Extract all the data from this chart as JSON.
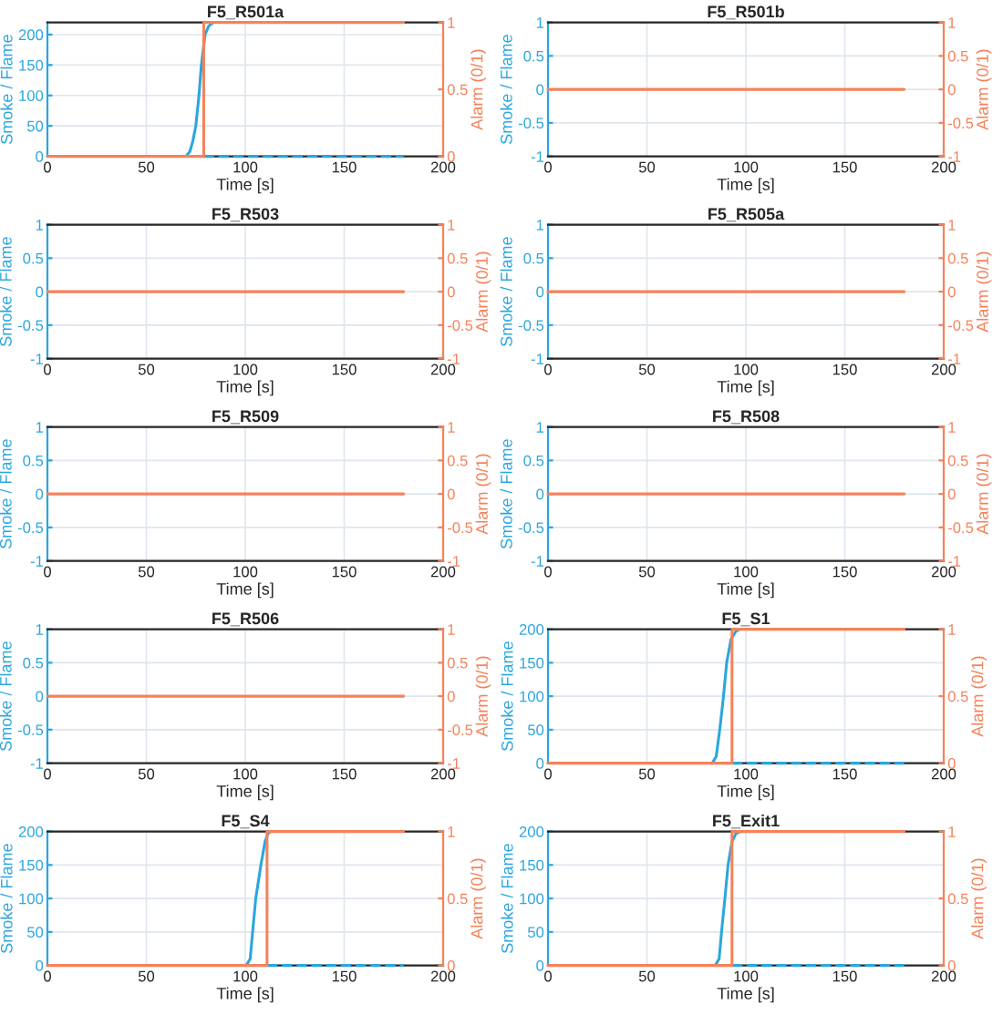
{
  "chart_data": [
    {
      "type": "line",
      "title": "F5_R501a",
      "xlabel": "Time [s]",
      "ylabel": "Smoke / Flame",
      "y2label": "Alarm (0/1)",
      "xlim": [
        0,
        200
      ],
      "xticks": [
        0,
        50,
        100,
        150,
        200
      ],
      "ylim": [
        0,
        220
      ],
      "yticks": [
        0,
        50,
        100,
        150,
        200
      ],
      "y2lim": [
        0,
        1
      ],
      "y2ticks": [
        0,
        0.5,
        1
      ],
      "grid": true,
      "series": [
        {
          "color": "#2ba6de",
          "line_style": "solid",
          "x": [
            70,
            72,
            73.5,
            75,
            76.6,
            77.8,
            79.7,
            81.5,
            84
          ],
          "values": [
            0,
            8,
            25,
            50,
            100,
            150,
            200,
            214,
            220
          ]
        },
        {
          "color": "#2ba6de",
          "line_style": "dashed",
          "x": [
            79,
            180
          ],
          "values": [
            0,
            0
          ]
        },
        {
          "axis": "y2",
          "color": "#f5825a",
          "line_style": "solid",
          "x": [
            0,
            79,
            79,
            180
          ],
          "values": [
            0,
            0,
            1,
            1
          ]
        }
      ]
    },
    {
      "type": "line",
      "title": "F5_R501b",
      "xlabel": "Time [s]",
      "ylabel": "Smoke / Flame",
      "y2label": "Alarm (0/1)",
      "xlim": [
        0,
        200
      ],
      "xticks": [
        0,
        50,
        100,
        150,
        200
      ],
      "ylim": [
        -1,
        1
      ],
      "yticks": [
        -1,
        -0.5,
        0,
        0.5,
        1
      ],
      "y2lim": [
        -1,
        1
      ],
      "y2ticks": [
        -1,
        -0.5,
        0,
        0.5,
        1
      ],
      "grid": true,
      "series": [
        {
          "axis": "y2",
          "color": "#f5825a",
          "line_style": "solid",
          "x": [
            0,
            180
          ],
          "values": [
            0,
            0
          ]
        }
      ]
    },
    {
      "type": "line",
      "title": "F5_R503",
      "xlabel": "Time [s]",
      "ylabel": "Smoke / Flame",
      "y2label": "Alarm (0/1)",
      "xlim": [
        0,
        200
      ],
      "xticks": [
        0,
        50,
        100,
        150,
        200
      ],
      "ylim": [
        -1,
        1
      ],
      "yticks": [
        -1,
        -0.5,
        0,
        0.5,
        1
      ],
      "y2lim": [
        -1,
        1
      ],
      "y2ticks": [
        -1,
        -0.5,
        0,
        0.5,
        1
      ],
      "grid": true,
      "series": [
        {
          "axis": "y2",
          "color": "#f5825a",
          "line_style": "solid",
          "x": [
            0,
            180
          ],
          "values": [
            0,
            0
          ]
        }
      ]
    },
    {
      "type": "line",
      "title": "F5_R505a",
      "xlabel": "Time [s]",
      "ylabel": "Smoke / Flame",
      "y2label": "Alarm (0/1)",
      "xlim": [
        0,
        200
      ],
      "xticks": [
        0,
        50,
        100,
        150,
        200
      ],
      "ylim": [
        -1,
        1
      ],
      "yticks": [
        -1,
        -0.5,
        0,
        0.5,
        1
      ],
      "y2lim": [
        -1,
        1
      ],
      "y2ticks": [
        -1,
        -0.5,
        0,
        0.5,
        1
      ],
      "grid": true,
      "series": [
        {
          "axis": "y2",
          "color": "#f5825a",
          "line_style": "solid",
          "x": [
            0,
            180
          ],
          "values": [
            0,
            0
          ]
        }
      ]
    },
    {
      "type": "line",
      "title": "F5_R509",
      "xlabel": "Time [s]",
      "ylabel": "Smoke / Flame",
      "y2label": "Alarm (0/1)",
      "xlim": [
        0,
        200
      ],
      "xticks": [
        0,
        50,
        100,
        150,
        200
      ],
      "ylim": [
        -1,
        1
      ],
      "yticks": [
        -1,
        -0.5,
        0,
        0.5,
        1
      ],
      "y2lim": [
        -1,
        1
      ],
      "y2ticks": [
        -1,
        -0.5,
        0,
        0.5,
        1
      ],
      "grid": true,
      "series": [
        {
          "axis": "y2",
          "color": "#f5825a",
          "line_style": "solid",
          "x": [
            0,
            180
          ],
          "values": [
            0,
            0
          ]
        }
      ]
    },
    {
      "type": "line",
      "title": "F5_R508",
      "xlabel": "Time [s]",
      "ylabel": "Smoke / Flame",
      "y2label": "Alarm (0/1)",
      "xlim": [
        0,
        200
      ],
      "xticks": [
        0,
        50,
        100,
        150,
        200
      ],
      "ylim": [
        -1,
        1
      ],
      "yticks": [
        -1,
        -0.5,
        0,
        0.5,
        1
      ],
      "y2lim": [
        -1,
        1
      ],
      "y2ticks": [
        -1,
        -0.5,
        0,
        0.5,
        1
      ],
      "grid": true,
      "series": [
        {
          "axis": "y2",
          "color": "#f5825a",
          "line_style": "solid",
          "x": [
            0,
            180
          ],
          "values": [
            0,
            0
          ]
        }
      ]
    },
    {
      "type": "line",
      "title": "F5_R506",
      "xlabel": "Time [s]",
      "ylabel": "Smoke / Flame",
      "y2label": "Alarm (0/1)",
      "xlim": [
        0,
        200
      ],
      "xticks": [
        0,
        50,
        100,
        150,
        200
      ],
      "ylim": [
        -1,
        1
      ],
      "yticks": [
        -1,
        -0.5,
        0,
        0.5,
        1
      ],
      "y2lim": [
        -1,
        1
      ],
      "y2ticks": [
        -1,
        -0.5,
        0,
        0.5,
        1
      ],
      "grid": true,
      "series": [
        {
          "axis": "y2",
          "color": "#f5825a",
          "line_style": "solid",
          "x": [
            0,
            180
          ],
          "values": [
            0,
            0
          ]
        }
      ]
    },
    {
      "type": "line",
      "title": "F5_S1",
      "xlabel": "Time [s]",
      "ylabel": "Smoke / Flame",
      "y2label": "Alarm (0/1)",
      "xlim": [
        0,
        200
      ],
      "xticks": [
        0,
        50,
        100,
        150,
        200
      ],
      "ylim": [
        0,
        200
      ],
      "yticks": [
        0,
        50,
        100,
        150,
        200
      ],
      "y2lim": [
        0,
        1
      ],
      "y2ticks": [
        0,
        0.5,
        1
      ],
      "grid": true,
      "series": [
        {
          "color": "#2ba6de",
          "line_style": "solid",
          "x": [
            83,
            85,
            86.8,
            88.7,
            90.3,
            92.5,
            95,
            97
          ],
          "values": [
            0,
            10,
            50,
            100,
            150,
            185,
            197,
            200
          ]
        },
        {
          "color": "#2ba6de",
          "line_style": "dashed",
          "x": [
            93,
            180
          ],
          "values": [
            0,
            0
          ]
        },
        {
          "axis": "y2",
          "color": "#f5825a",
          "line_style": "solid",
          "x": [
            0,
            93,
            93,
            180
          ],
          "values": [
            0,
            0,
            1,
            1
          ]
        }
      ]
    },
    {
      "type": "line",
      "title": "F5_S4",
      "xlabel": "Time [s]",
      "ylabel": "Smoke / Flame",
      "y2label": "Alarm (0/1)",
      "xlim": [
        0,
        200
      ],
      "xticks": [
        0,
        50,
        100,
        150,
        200
      ],
      "ylim": [
        0,
        200
      ],
      "yticks": [
        0,
        50,
        100,
        150,
        200
      ],
      "y2lim": [
        0,
        1
      ],
      "y2ticks": [
        0,
        0.5,
        1
      ],
      "grid": true,
      "series": [
        {
          "color": "#2ba6de",
          "line_style": "solid",
          "x": [
            100.5,
            102.5,
            103.7,
            105.3,
            107.9,
            110,
            111.5,
            113
          ],
          "values": [
            0,
            10,
            50,
            100,
            150,
            185,
            197,
            200
          ]
        },
        {
          "color": "#2ba6de",
          "line_style": "dashed",
          "x": [
            111,
            180
          ],
          "values": [
            0,
            0
          ]
        },
        {
          "axis": "y2",
          "color": "#f5825a",
          "line_style": "solid",
          "x": [
            0,
            111,
            111,
            180
          ],
          "values": [
            0,
            0,
            1,
            1
          ]
        }
      ]
    },
    {
      "type": "line",
      "title": "F5_Exit1",
      "xlabel": "Time [s]",
      "ylabel": "Smoke / Flame",
      "y2label": "Alarm (0/1)",
      "xlim": [
        0,
        200
      ],
      "xticks": [
        0,
        50,
        100,
        150,
        200
      ],
      "ylim": [
        0,
        200
      ],
      "yticks": [
        0,
        50,
        100,
        150,
        200
      ],
      "y2lim": [
        0,
        1
      ],
      "y2ticks": [
        0,
        0.5,
        1
      ],
      "grid": true,
      "series": [
        {
          "color": "#2ba6de",
          "line_style": "solid",
          "x": [
            84.5,
            86.5,
            87.7,
            89.4,
            91,
            93,
            95,
            97.4
          ],
          "values": [
            0,
            10,
            50,
            100,
            150,
            185,
            197,
            200
          ]
        },
        {
          "color": "#2ba6de",
          "line_style": "dashed",
          "x": [
            93,
            180
          ],
          "values": [
            0,
            0
          ]
        },
        {
          "axis": "y2",
          "color": "#f5825a",
          "line_style": "solid",
          "x": [
            0,
            93,
            93,
            180
          ],
          "values": [
            0,
            0,
            1,
            1
          ]
        }
      ]
    }
  ]
}
